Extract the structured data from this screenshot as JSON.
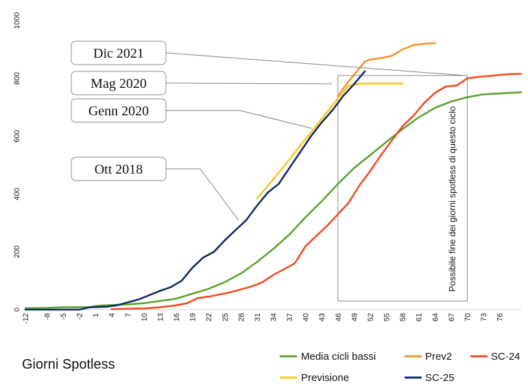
{
  "chart_data": {
    "type": "line",
    "title": "Giorni Spotless",
    "xlabel": "",
    "ylabel": "",
    "xlim": [
      -12,
      80
    ],
    "ylim": [
      0,
      1000
    ],
    "grid": false,
    "legend_position": "bottom",
    "y_ticks": [
      "0",
      "200",
      "400",
      "600",
      "800",
      "1000"
    ],
    "y_tick_values": [
      0,
      200,
      400,
      600,
      800,
      1000
    ],
    "x_ticks": [
      "-12",
      "-8",
      "-5",
      "-2",
      "1",
      "4",
      "7",
      "10",
      "13",
      "16",
      "19",
      "22",
      "25",
      "28",
      "31",
      "34",
      "37",
      "40",
      "43",
      "46",
      "49",
      "52",
      "55",
      "58",
      "61",
      "64",
      "67",
      "70",
      "73",
      "76"
    ],
    "x_tick_values": [
      -12,
      -8,
      -5,
      -2,
      1,
      4,
      7,
      10,
      13,
      16,
      19,
      22,
      25,
      28,
      31,
      34,
      37,
      40,
      43,
      46,
      49,
      52,
      55,
      58,
      61,
      64,
      67,
      70,
      73,
      76
    ],
    "series": [
      {
        "name": "Media cicli bassi",
        "color": "#5DA130",
        "points": [
          [
            -12,
            5
          ],
          [
            -8,
            6
          ],
          [
            -5,
            8
          ],
          [
            -2,
            8
          ],
          [
            0,
            9
          ],
          [
            1,
            12
          ],
          [
            2,
            14
          ],
          [
            4,
            16
          ],
          [
            7,
            18
          ],
          [
            10,
            22
          ],
          [
            13,
            30
          ],
          [
            16,
            38
          ],
          [
            19,
            55
          ],
          [
            22,
            72
          ],
          [
            25,
            95
          ],
          [
            28,
            125
          ],
          [
            31,
            165
          ],
          [
            34,
            210
          ],
          [
            37,
            260
          ],
          [
            40,
            320
          ],
          [
            43,
            375
          ],
          [
            46,
            435
          ],
          [
            49,
            490
          ],
          [
            52,
            535
          ],
          [
            55,
            580
          ],
          [
            58,
            625
          ],
          [
            61,
            665
          ],
          [
            64,
            698
          ],
          [
            67,
            720
          ],
          [
            70,
            735
          ],
          [
            73,
            745
          ],
          [
            76,
            748
          ],
          [
            80,
            752
          ]
        ]
      },
      {
        "name": "Prev2",
        "color": "#F5922E",
        "points": [
          [
            46,
            740
          ],
          [
            48,
            790
          ],
          [
            50,
            835
          ],
          [
            51,
            858
          ],
          [
            52,
            865
          ],
          [
            54,
            870
          ],
          [
            56,
            878
          ],
          [
            58,
            900
          ],
          [
            60,
            915
          ],
          [
            62,
            920
          ],
          [
            64,
            922
          ]
        ]
      },
      {
        "name": "SC-24",
        "color": "#F04B23",
        "points": [
          [
            4,
            2
          ],
          [
            7,
            3
          ],
          [
            10,
            4
          ],
          [
            13,
            8
          ],
          [
            16,
            15
          ],
          [
            18,
            22
          ],
          [
            20,
            40
          ],
          [
            22,
            45
          ],
          [
            24,
            52
          ],
          [
            26,
            60
          ],
          [
            28,
            70
          ],
          [
            30,
            80
          ],
          [
            32,
            95
          ],
          [
            34,
            120
          ],
          [
            36,
            140
          ],
          [
            38,
            160
          ],
          [
            40,
            220
          ],
          [
            42,
            255
          ],
          [
            44,
            290
          ],
          [
            46,
            330
          ],
          [
            48,
            370
          ],
          [
            50,
            430
          ],
          [
            52,
            480
          ],
          [
            54,
            535
          ],
          [
            56,
            585
          ],
          [
            58,
            635
          ],
          [
            60,
            670
          ],
          [
            62,
            715
          ],
          [
            64,
            750
          ],
          [
            66,
            772
          ],
          [
            68,
            775
          ],
          [
            70,
            800
          ],
          [
            72,
            805
          ],
          [
            74,
            808
          ],
          [
            76,
            812
          ],
          [
            78,
            815
          ],
          [
            80,
            816
          ]
        ]
      },
      {
        "name": "Previsione",
        "color": "#FDC422",
        "points": [
          [
            31,
            385
          ],
          [
            34,
            450
          ],
          [
            37,
            520
          ],
          [
            40,
            590
          ],
          [
            43,
            660
          ],
          [
            46,
            730
          ],
          [
            48,
            775
          ],
          [
            50,
            782
          ],
          [
            58,
            782
          ]
        ]
      },
      {
        "name": "SC-25",
        "color": "#0F2A64",
        "points": [
          [
            -12,
            0
          ],
          [
            -2,
            0
          ],
          [
            0,
            8
          ],
          [
            3,
            10
          ],
          [
            5,
            15
          ],
          [
            7,
            25
          ],
          [
            9,
            35
          ],
          [
            11,
            50
          ],
          [
            13,
            65
          ],
          [
            15,
            78
          ],
          [
            17,
            100
          ],
          [
            19,
            145
          ],
          [
            21,
            180
          ],
          [
            23,
            200
          ],
          [
            25,
            240
          ],
          [
            27,
            275
          ],
          [
            29,
            310
          ],
          [
            31,
            360
          ],
          [
            33,
            405
          ],
          [
            35,
            435
          ],
          [
            37,
            490
          ],
          [
            39,
            545
          ],
          [
            41,
            600
          ],
          [
            43,
            648
          ],
          [
            45,
            690
          ],
          [
            47,
            740
          ],
          [
            49,
            780
          ],
          [
            51,
            825
          ]
        ]
      }
    ],
    "callouts": [
      {
        "label": "Dic 2021"
      },
      {
        "label": "Mag 2020"
      },
      {
        "label": "Genn 2020"
      },
      {
        "label": "Ott 2018"
      }
    ],
    "annotation": "Possibile fine dei giorni spotless di questo ciclo",
    "highlight_box": {
      "x_from": 46,
      "x_to": 70,
      "y_from": 30,
      "y_to": 810
    }
  }
}
